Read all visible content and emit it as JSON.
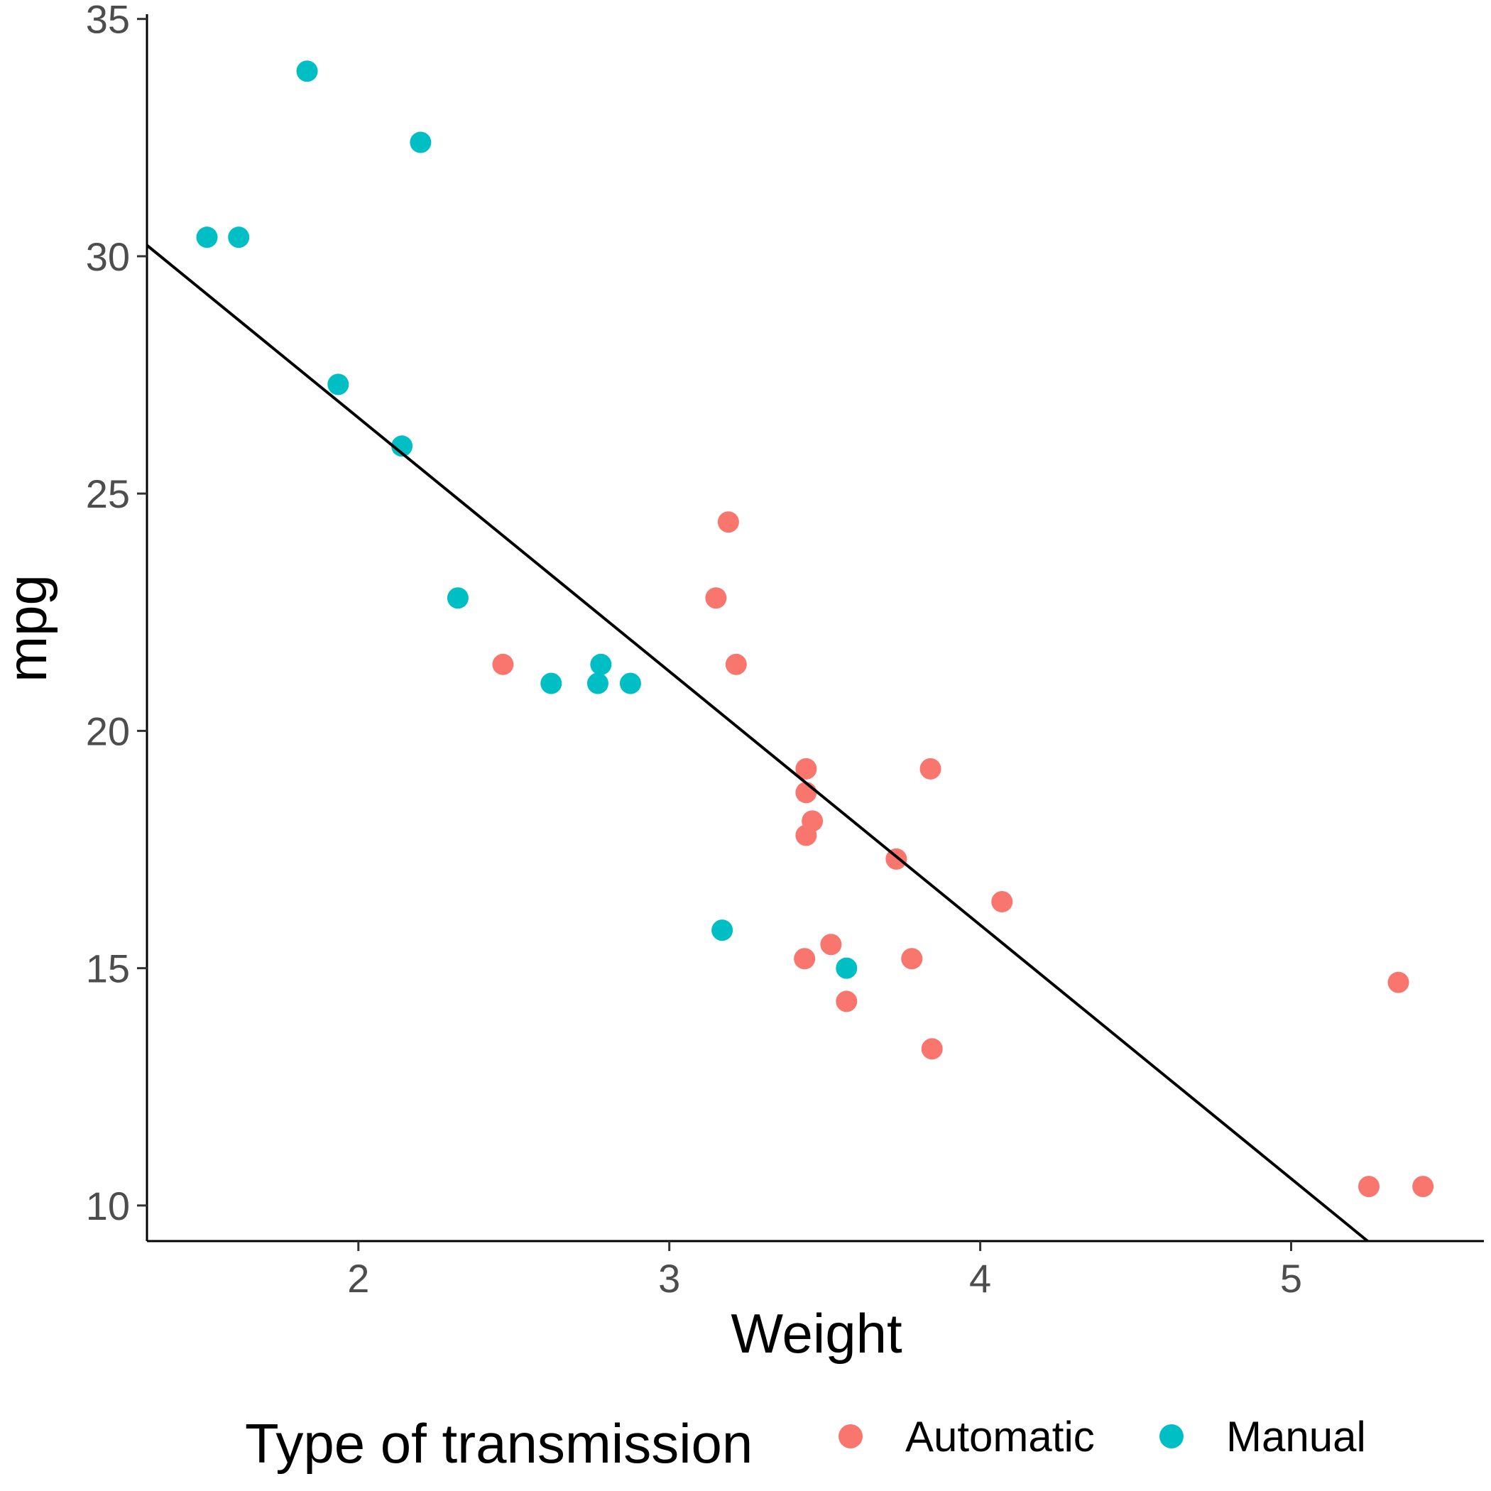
{
  "chart_data": {
    "type": "scatter",
    "title": "",
    "xlabel": "Weight",
    "ylabel": "mpg",
    "xlim": [
      1.32,
      5.62
    ],
    "ylim": [
      9.25,
      35.1
    ],
    "x_ticks": [
      2,
      3,
      4,
      5
    ],
    "y_ticks": [
      10,
      15,
      20,
      25,
      30,
      35
    ],
    "grid": false,
    "legend": {
      "title": "Type of transmission",
      "position": "bottom"
    },
    "series": [
      {
        "name": "Automatic",
        "color": "#F8766D",
        "points": [
          [
            2.465,
            21.4
          ],
          [
            3.15,
            22.8
          ],
          [
            3.19,
            24.4
          ],
          [
            3.215,
            21.4
          ],
          [
            3.44,
            19.2
          ],
          [
            3.44,
            18.7
          ],
          [
            3.46,
            18.1
          ],
          [
            3.44,
            17.8
          ],
          [
            3.73,
            17.3
          ],
          [
            3.84,
            19.2
          ],
          [
            4.07,
            16.4
          ],
          [
            3.52,
            15.5
          ],
          [
            3.435,
            15.2
          ],
          [
            3.78,
            15.2
          ],
          [
            3.57,
            14.3
          ],
          [
            3.845,
            13.3
          ],
          [
            5.345,
            14.7
          ],
          [
            5.25,
            10.4
          ],
          [
            5.424,
            10.4
          ]
        ]
      },
      {
        "name": "Manual",
        "color": "#00BFC4",
        "points": [
          [
            1.513,
            30.4
          ],
          [
            1.615,
            30.4
          ],
          [
            1.835,
            33.9
          ],
          [
            2.2,
            32.4
          ],
          [
            1.935,
            27.3
          ],
          [
            2.14,
            26.0
          ],
          [
            2.32,
            22.8
          ],
          [
            2.62,
            21.0
          ],
          [
            2.77,
            21.0
          ],
          [
            2.875,
            21.0
          ],
          [
            2.78,
            21.4
          ],
          [
            3.17,
            15.8
          ],
          [
            3.57,
            15.0
          ]
        ]
      }
    ],
    "trendline": {
      "type": "linear",
      "intercept": 37.285,
      "slope": -5.344,
      "color": "#000000"
    }
  }
}
